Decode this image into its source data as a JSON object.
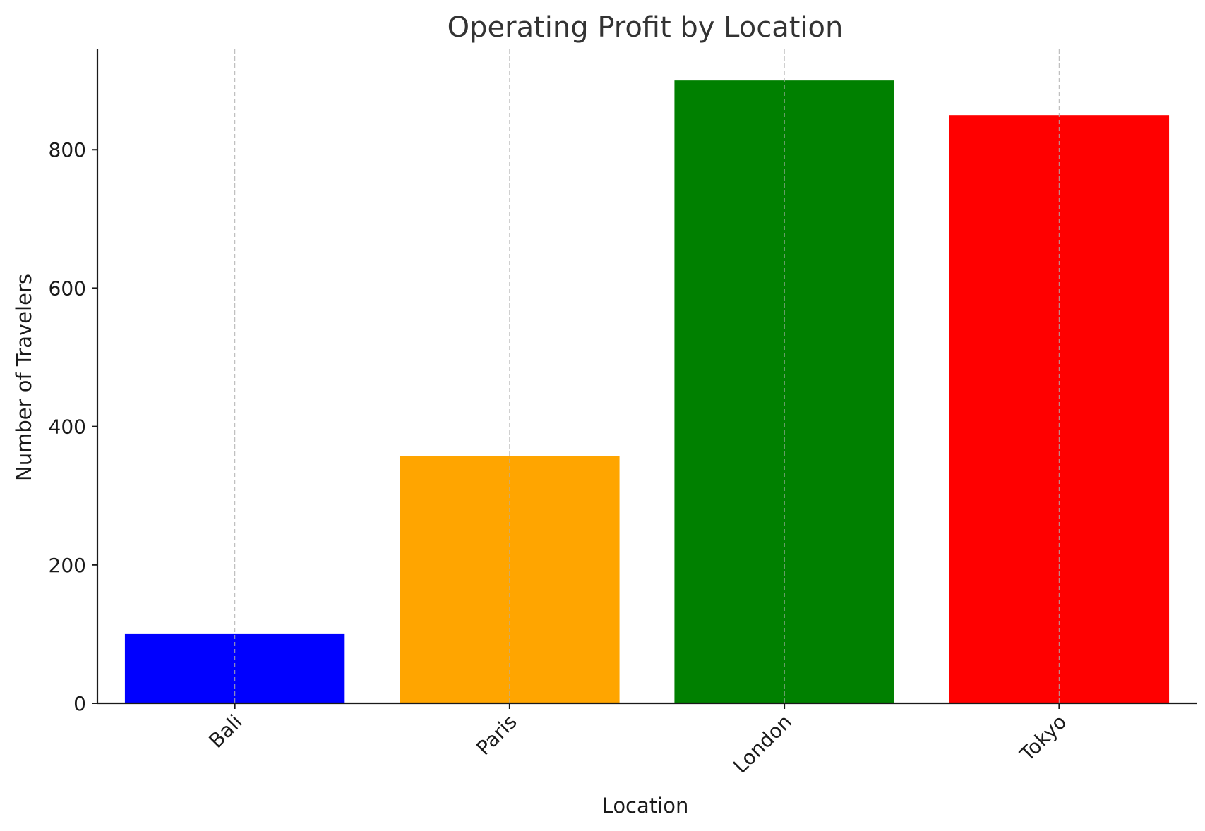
{
  "chart_data": {
    "type": "bar",
    "title": "Operating Profit by Location",
    "xlabel": "Location",
    "ylabel": "Number of Travelers",
    "categories": [
      "Bali",
      "Paris",
      "London",
      "Tokyo"
    ],
    "values": [
      100,
      357,
      900,
      850
    ],
    "colors": [
      "#0000ff",
      "#ffa500",
      "#008000",
      "#ff0000"
    ],
    "ylim": [
      0,
      945
    ],
    "yticks": [
      0,
      200,
      400,
      600,
      800
    ],
    "grid": "vertical dashed",
    "tick_label_rotation": "45 degrees"
  }
}
